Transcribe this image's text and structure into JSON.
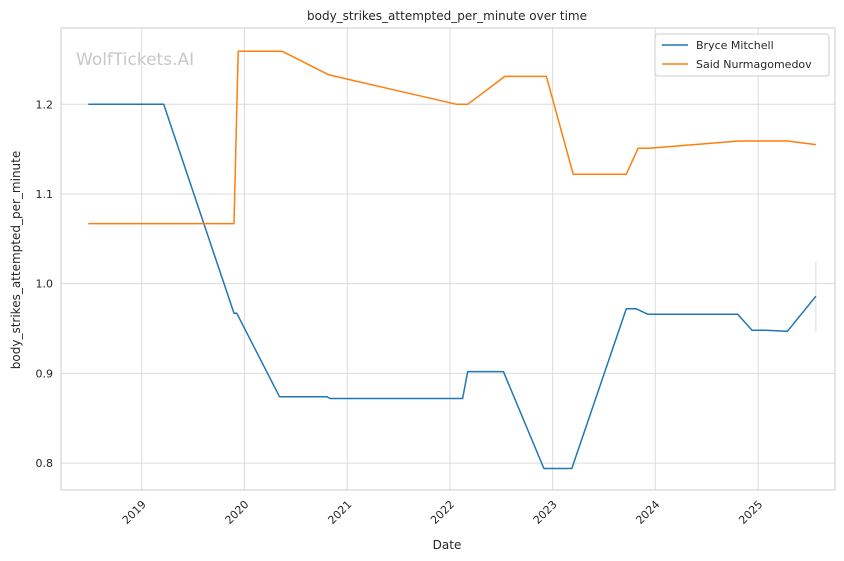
{
  "chart_data": {
    "type": "line",
    "title": "body_strikes_attempted_per_minute over time",
    "xlabel": "Date",
    "ylabel": "body_strikes_attempted_per_minute",
    "watermark": "WolfTickets.AI",
    "x_axis_kind": "date",
    "xlim": [
      "2018-03-20",
      "2025-10-01"
    ],
    "ylim": [
      0.77,
      1.285
    ],
    "x_ticks": [
      "2019",
      "2020",
      "2021",
      "2022",
      "2023",
      "2024",
      "2025"
    ],
    "x_tick_values": [
      "2019-01-01",
      "2020-01-01",
      "2021-01-01",
      "2022-01-01",
      "2023-01-01",
      "2024-01-01",
      "2025-01-01"
    ],
    "y_ticks": [
      "0.8",
      "0.9",
      "1.0",
      "1.1",
      "1.2"
    ],
    "y_tick_values": [
      0.8,
      0.9,
      1.0,
      1.1,
      1.2
    ],
    "grid": true,
    "legend_position": "top-right",
    "series": [
      {
        "name": "Bryce Mitchell",
        "color": "#1f77b4",
        "points": [
          [
            "2018-06-25",
            1.2
          ],
          [
            "2019-03-20",
            1.2
          ],
          [
            "2019-11-25",
            0.967
          ],
          [
            "2019-12-05",
            0.967
          ],
          [
            "2020-05-05",
            0.874
          ],
          [
            "2020-10-20",
            0.874
          ],
          [
            "2020-11-01",
            0.872
          ],
          [
            "2022-02-15",
            0.872
          ],
          [
            "2022-03-05",
            0.902
          ],
          [
            "2022-07-10",
            0.902
          ],
          [
            "2022-12-01",
            0.794
          ],
          [
            "2023-03-10",
            0.794
          ],
          [
            "2023-09-20",
            0.972
          ],
          [
            "2023-10-25",
            0.972
          ],
          [
            "2023-12-05",
            0.966
          ],
          [
            "2024-10-20",
            0.966
          ],
          [
            "2024-12-10",
            0.948
          ],
          [
            "2025-01-25",
            0.948
          ],
          [
            "2025-04-15",
            0.947
          ],
          [
            "2025-07-25",
            0.986
          ]
        ]
      },
      {
        "name": "Said Nurmagomedov",
        "color": "#ff7f0e",
        "points": [
          [
            "2018-06-25",
            1.067
          ],
          [
            "2019-11-25",
            1.067
          ],
          [
            "2019-12-10",
            1.259
          ],
          [
            "2020-05-15",
            1.259
          ],
          [
            "2020-10-25",
            1.233
          ],
          [
            "2020-11-20",
            1.231
          ],
          [
            "2022-01-25",
            1.2
          ],
          [
            "2022-03-05",
            1.2
          ],
          [
            "2022-07-15",
            1.231
          ],
          [
            "2022-12-10",
            1.231
          ],
          [
            "2023-03-15",
            1.122
          ],
          [
            "2023-09-20",
            1.122
          ],
          [
            "2023-11-01",
            1.151
          ],
          [
            "2023-12-10",
            1.151
          ],
          [
            "2024-10-25",
            1.159
          ],
          [
            "2025-04-15",
            1.159
          ],
          [
            "2025-07-25",
            1.155
          ]
        ]
      }
    ],
    "error_bar": {
      "series": "Bryce Mitchell",
      "x": "2025-07-25",
      "low": 0.946,
      "high": 1.025,
      "color": "#d0e0ec"
    }
  }
}
